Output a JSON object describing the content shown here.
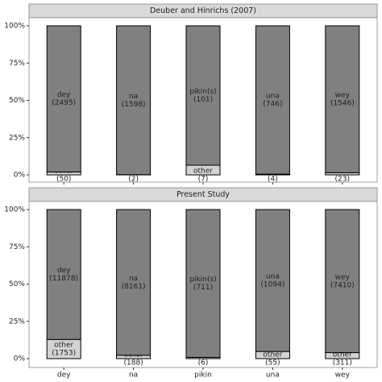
{
  "chart_data": [
    {
      "type": "bar",
      "stacked": "percent",
      "title": "Deuber and Hinrichs (2007)",
      "series": [
        {
          "name": "other",
          "color": "#d3d3d3",
          "values": [
            50,
            2,
            7,
            4,
            23
          ],
          "value_labels": [
            "(50)",
            "(2)",
            "(7)",
            "(4)",
            "(23)"
          ]
        },
        {
          "labels": [
            "dey",
            "na",
            "pikin(s)",
            "una",
            "wey"
          ],
          "color": "#808080",
          "values": [
            2495,
            1598,
            101,
            746,
            1546
          ],
          "value_labels": [
            "(2495)",
            "(1598)",
            "(101)",
            "(746)",
            "(1546)"
          ]
        }
      ],
      "ylim": [
        0,
        100
      ],
      "yticks": [
        {
          "value": 0,
          "label": "0%"
        },
        {
          "value": 25,
          "label": "25%"
        },
        {
          "value": 50,
          "label": "50%"
        },
        {
          "value": 75,
          "label": "75%"
        },
        {
          "value": 100,
          "label": "100%"
        }
      ]
    },
    {
      "type": "bar",
      "stacked": "percent",
      "title": "Present Study",
      "categories": [
        "dey",
        "na",
        "pikin",
        "una",
        "wey"
      ],
      "series": [
        {
          "name": "other",
          "color": "#d3d3d3",
          "values": [
            1753,
            188,
            6,
            55,
            311
          ],
          "value_labels": [
            "(1753)",
            "(188)",
            "(6)",
            "(55)",
            "(311)"
          ]
        },
        {
          "labels": [
            "dey",
            "na",
            "pikin(s)",
            "una",
            "wey"
          ],
          "color": "#808080",
          "values": [
            11878,
            8161,
            711,
            1094,
            7410
          ],
          "value_labels": [
            "(11878)",
            "(8161)",
            "(711)",
            "(1094)",
            "(7410)"
          ]
        }
      ],
      "ylim": [
        0,
        100
      ],
      "yticks": [
        {
          "value": 0,
          "label": "0%"
        },
        {
          "value": 25,
          "label": "25%"
        },
        {
          "value": 50,
          "label": "50%"
        },
        {
          "value": 75,
          "label": "75%"
        },
        {
          "value": 100,
          "label": "100%"
        }
      ]
    }
  ]
}
